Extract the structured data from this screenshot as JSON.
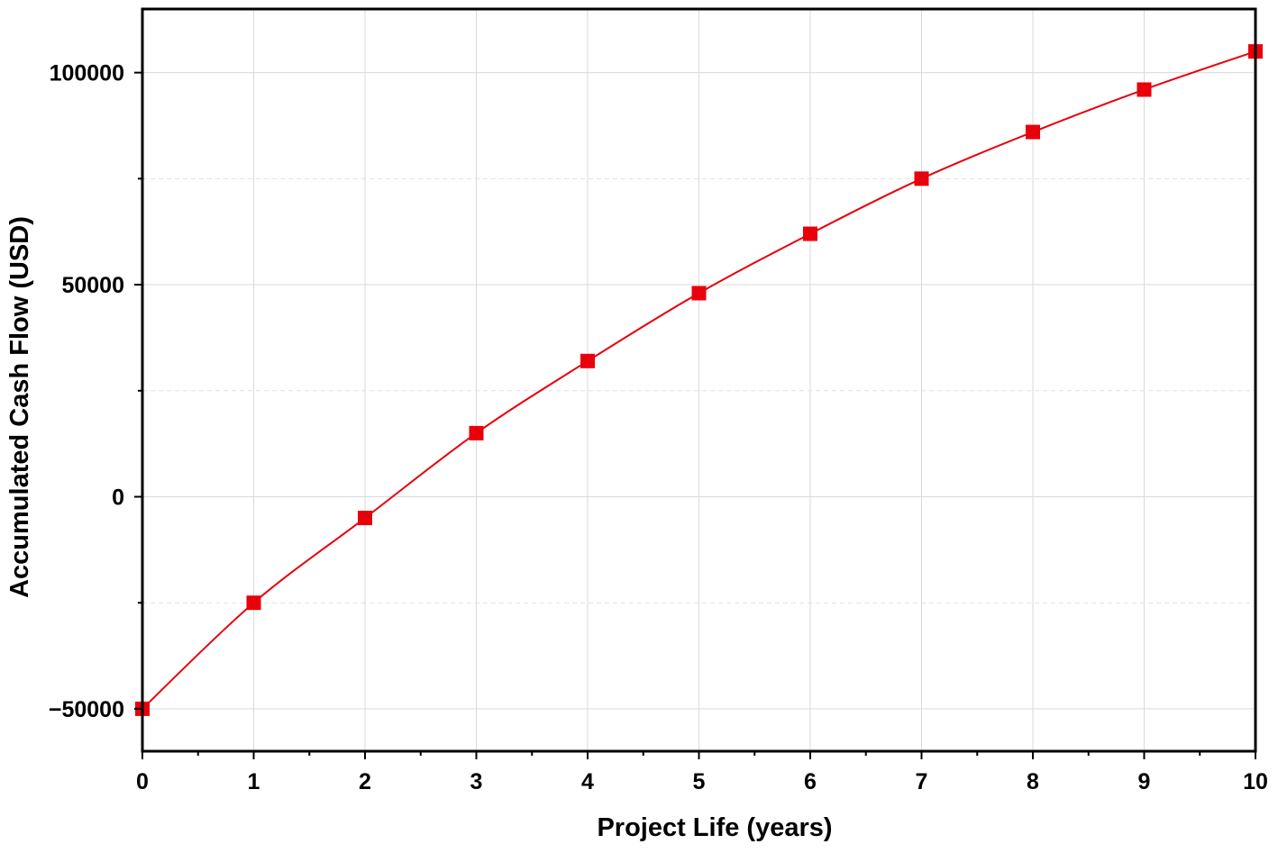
{
  "chart_data": {
    "type": "line",
    "title": "",
    "xlabel": "Project Life (years)",
    "ylabel": "Accumulated Cash Flow (USD)",
    "xlim": [
      0,
      10
    ],
    "ylim": [
      -60000,
      115000
    ],
    "x_ticks": [
      0,
      1,
      2,
      3,
      4,
      5,
      6,
      7,
      8,
      9,
      10
    ],
    "x_tick_labels": [
      "0",
      "1",
      "2",
      "3",
      "4",
      "5",
      "6",
      "7",
      "8",
      "9",
      "10"
    ],
    "y_ticks": [
      -50000,
      0,
      50000,
      100000
    ],
    "y_tick_labels": [
      "−50000",
      "0",
      "50000",
      "100000"
    ],
    "y_minor_gridlines": [
      -25000,
      25000,
      75000
    ],
    "grid": true,
    "legend": "none",
    "series": [
      {
        "color": "#e8000b",
        "marker": "square",
        "x": [
          0,
          1,
          2,
          3,
          4,
          5,
          6,
          7,
          8,
          9,
          10
        ],
        "values": [
          -50000,
          -25000,
          -5000,
          15000,
          32000,
          48000,
          62000,
          75000,
          86000,
          96000,
          105000
        ]
      }
    ]
  }
}
